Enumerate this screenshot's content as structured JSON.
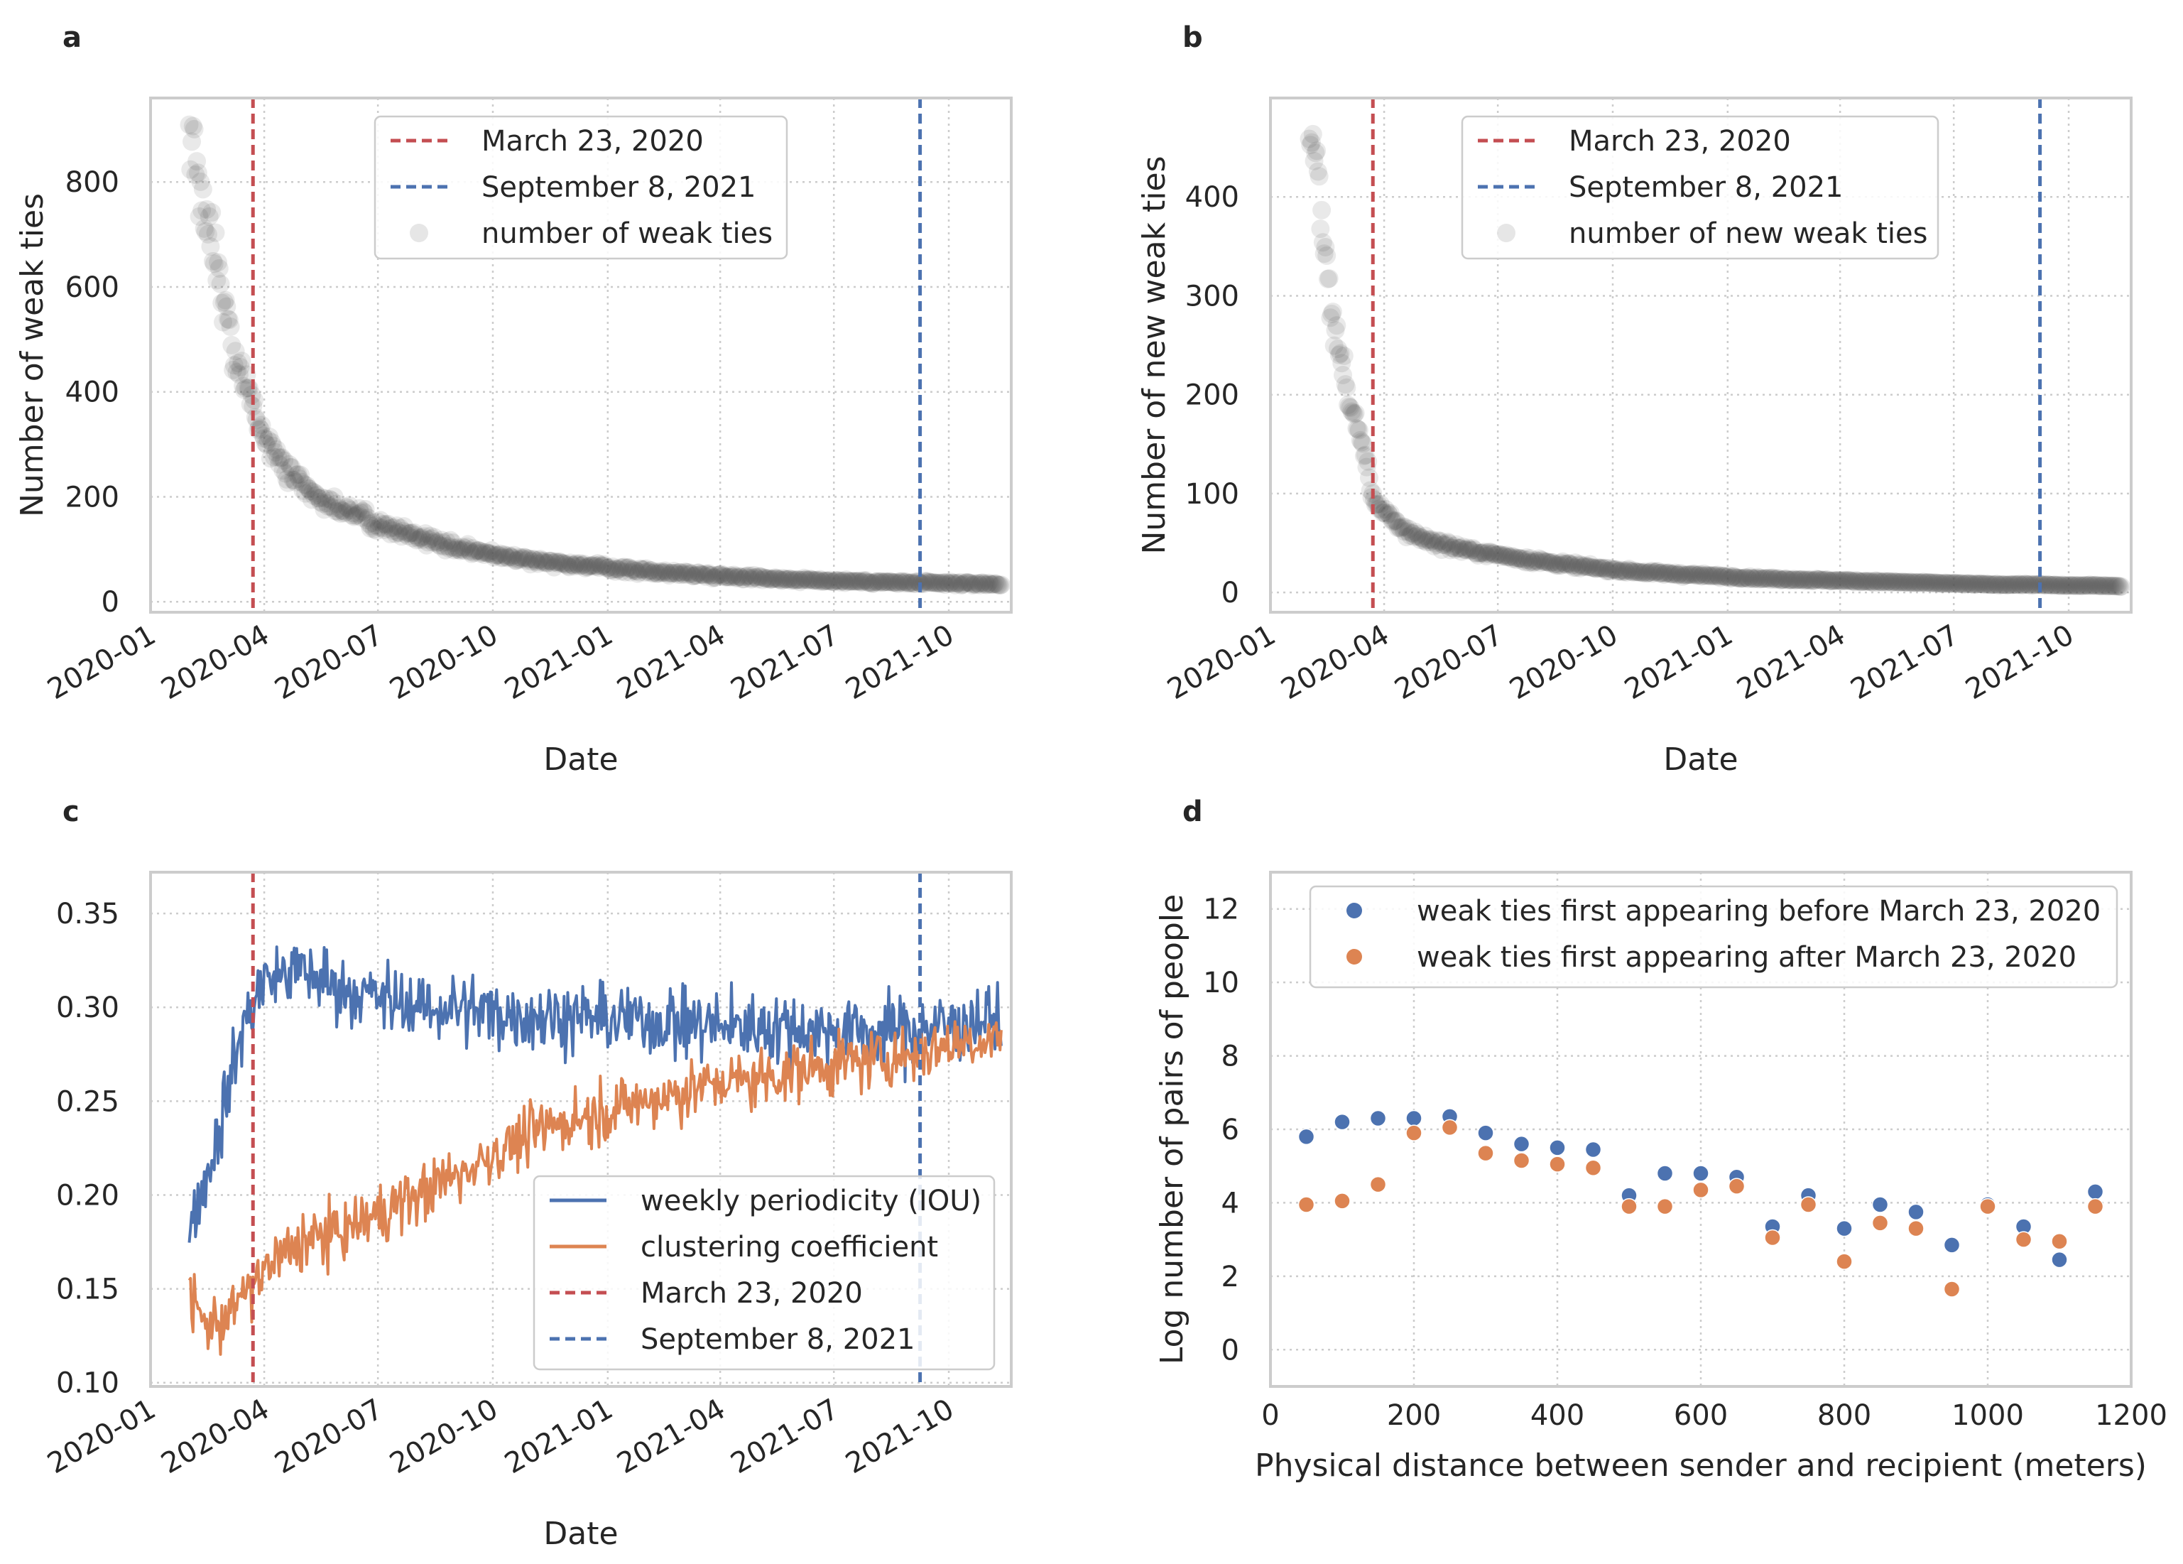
{
  "chart_data": [
    {
      "panel": "a",
      "type": "scatter",
      "xlabel": "Date",
      "ylabel": "Number of weak ties",
      "xticks": [
        "2020-01",
        "2020-04",
        "2020-07",
        "2020-10",
        "2021-01",
        "2021-04",
        "2021-07",
        "2021-10"
      ],
      "yticks": [
        "0",
        "200",
        "400",
        "600",
        "800"
      ],
      "xlim": [
        "2020-01-01",
        "2021-11-20"
      ],
      "ylim": [
        -20,
        960
      ],
      "grid": true,
      "legend_loc": "upper-center",
      "vlines": [
        {
          "date": "2020-03-23",
          "label": "March 23, 2020",
          "color": "#c44e52"
        },
        {
          "date": "2021-09-08",
          "label": "September 8, 2021",
          "color": "#4c72b0"
        }
      ],
      "series": [
        {
          "name": "number of weak ties",
          "color": "#555555",
          "points": [
            [
              "2020-02-01",
              850
            ],
            [
              "2020-02-04",
              890
            ],
            [
              "2020-02-08",
              800
            ],
            [
              "2020-02-12",
              760
            ],
            [
              "2020-02-18",
              700
            ],
            [
              "2020-02-24",
              640
            ],
            [
              "2020-03-01",
              560
            ],
            [
              "2020-03-08",
              480
            ],
            [
              "2020-03-15",
              430
            ],
            [
              "2020-03-22",
              380
            ],
            [
              "2020-04-01",
              310
            ],
            [
              "2020-04-15",
              260
            ],
            [
              "2020-05-01",
              220
            ],
            [
              "2020-05-20",
              190
            ],
            [
              "2020-06-10",
              170
            ],
            [
              "2020-07-01",
              150
            ],
            [
              "2020-08-01",
              125
            ],
            [
              "2020-09-01",
              105
            ],
            [
              "2020-10-01",
              90
            ],
            [
              "2020-11-01",
              80
            ],
            [
              "2020-12-01",
              72
            ],
            [
              "2021-01-01",
              65
            ],
            [
              "2021-02-01",
              58
            ],
            [
              "2021-03-01",
              54
            ],
            [
              "2021-04-01",
              50
            ],
            [
              "2021-05-01",
              46
            ],
            [
              "2021-06-01",
              42
            ],
            [
              "2021-07-01",
              40
            ],
            [
              "2021-08-01",
              38
            ],
            [
              "2021-09-01",
              36
            ],
            [
              "2021-10-01",
              35
            ],
            [
              "2021-11-01",
              34
            ],
            [
              "2021-11-12",
              33
            ]
          ]
        }
      ]
    },
    {
      "panel": "b",
      "type": "scatter",
      "xlabel": "Date",
      "ylabel": "Number of new weak ties",
      "xticks": [
        "2020-01",
        "2020-04",
        "2020-07",
        "2020-10",
        "2021-01",
        "2021-04",
        "2021-07",
        "2021-10"
      ],
      "yticks": [
        "0",
        "100",
        "200",
        "300",
        "400"
      ],
      "xlim": [
        "2020-01-01",
        "2021-11-20"
      ],
      "ylim": [
        -20,
        500
      ],
      "grid": true,
      "legend_loc": "upper-center",
      "vlines": [
        {
          "date": "2020-03-23",
          "label": "March 23, 2020",
          "color": "#c44e52"
        },
        {
          "date": "2021-09-08",
          "label": "September 8, 2021",
          "color": "#4c72b0"
        }
      ],
      "series": [
        {
          "name": "number of new weak ties",
          "color": "#555555",
          "points": [
            [
              "2020-02-01",
              460
            ],
            [
              "2020-02-04",
              470
            ],
            [
              "2020-02-08",
              400
            ],
            [
              "2020-02-12",
              360
            ],
            [
              "2020-02-18",
              300
            ],
            [
              "2020-02-24",
              250
            ],
            [
              "2020-03-01",
              210
            ],
            [
              "2020-03-08",
              175
            ],
            [
              "2020-03-15",
              150
            ],
            [
              "2020-03-22",
              100
            ],
            [
              "2020-04-01",
              80
            ],
            [
              "2020-04-15",
              65
            ],
            [
              "2020-05-01",
              55
            ],
            [
              "2020-05-20",
              48
            ],
            [
              "2020-06-10",
              42
            ],
            [
              "2020-07-01",
              38
            ],
            [
              "2020-08-01",
              32
            ],
            [
              "2020-09-01",
              27
            ],
            [
              "2020-10-01",
              23
            ],
            [
              "2020-11-01",
              20
            ],
            [
              "2020-12-01",
              18
            ],
            [
              "2021-01-01",
              16
            ],
            [
              "2021-02-01",
              14
            ],
            [
              "2021-03-01",
              13
            ],
            [
              "2021-04-01",
              12
            ],
            [
              "2021-05-01",
              11
            ],
            [
              "2021-06-01",
              10
            ],
            [
              "2021-07-01",
              9
            ],
            [
              "2021-08-01",
              8
            ],
            [
              "2021-09-01",
              8
            ],
            [
              "2021-10-01",
              7
            ],
            [
              "2021-11-01",
              7
            ],
            [
              "2021-11-12",
              6
            ]
          ]
        }
      ]
    },
    {
      "panel": "c",
      "type": "line",
      "xlabel": "Date",
      "ylabel": "",
      "xticks": [
        "2020-01",
        "2020-04",
        "2020-07",
        "2020-10",
        "2021-01",
        "2021-04",
        "2021-07",
        "2021-10"
      ],
      "yticks": [
        "0.10",
        "0.15",
        "0.20",
        "0.25",
        "0.30",
        "0.35"
      ],
      "xlim": [
        "2020-01-01",
        "2021-11-20"
      ],
      "ylim": [
        0.098,
        0.372
      ],
      "grid": true,
      "legend_loc": "lower-right",
      "vlines": [
        {
          "date": "2020-03-23",
          "label": "March 23, 2020",
          "color": "#c44e52"
        },
        {
          "date": "2021-09-08",
          "label": "September 8, 2021",
          "color": "#4c72b0"
        }
      ],
      "series": [
        {
          "name": "weekly periodicity (IOU)",
          "color": "#4c72b0",
          "points": [
            [
              "2020-02-01",
              0.185
            ],
            [
              "2020-02-15",
              0.21
            ],
            [
              "2020-03-01",
              0.25
            ],
            [
              "2020-03-15",
              0.29
            ],
            [
              "2020-04-01",
              0.315
            ],
            [
              "2020-05-01",
              0.32
            ],
            [
              "2020-06-01",
              0.31
            ],
            [
              "2020-07-01",
              0.305
            ],
            [
              "2020-08-01",
              0.3
            ],
            [
              "2020-09-01",
              0.3
            ],
            [
              "2020-10-01",
              0.297
            ],
            [
              "2020-11-01",
              0.296
            ],
            [
              "2020-12-01",
              0.295
            ],
            [
              "2021-01-01",
              0.294
            ],
            [
              "2021-02-01",
              0.293
            ],
            [
              "2021-03-01",
              0.292
            ],
            [
              "2021-04-01",
              0.29
            ],
            [
              "2021-05-01",
              0.29
            ],
            [
              "2021-06-01",
              0.289
            ],
            [
              "2021-07-01",
              0.288
            ],
            [
              "2021-08-01",
              0.287
            ],
            [
              "2021-09-01",
              0.288
            ],
            [
              "2021-10-01",
              0.29
            ],
            [
              "2021-11-12",
              0.295
            ]
          ]
        },
        {
          "name": "clustering coefficient",
          "color": "#dd8452",
          "points": [
            [
              "2020-02-01",
              0.145
            ],
            [
              "2020-02-15",
              0.13
            ],
            [
              "2020-03-01",
              0.135
            ],
            [
              "2020-03-15",
              0.145
            ],
            [
              "2020-04-01",
              0.16
            ],
            [
              "2020-05-01",
              0.175
            ],
            [
              "2020-06-01",
              0.18
            ],
            [
              "2020-07-01",
              0.19
            ],
            [
              "2020-08-01",
              0.2
            ],
            [
              "2020-09-01",
              0.21
            ],
            [
              "2020-10-01",
              0.222
            ],
            [
              "2020-11-01",
              0.232
            ],
            [
              "2020-12-01",
              0.24
            ],
            [
              "2021-01-01",
              0.245
            ],
            [
              "2021-02-01",
              0.25
            ],
            [
              "2021-03-01",
              0.255
            ],
            [
              "2021-04-01",
              0.26
            ],
            [
              "2021-05-01",
              0.262
            ],
            [
              "2021-06-01",
              0.266
            ],
            [
              "2021-07-01",
              0.27
            ],
            [
              "2021-08-01",
              0.272
            ],
            [
              "2021-09-01",
              0.275
            ],
            [
              "2021-10-01",
              0.28
            ],
            [
              "2021-11-12",
              0.285
            ]
          ]
        }
      ]
    },
    {
      "panel": "d",
      "type": "scatter",
      "xlabel": "Physical distance between sender and recipient (meters)",
      "ylabel": "Log number of pairs of people",
      "xticks": [
        "0",
        "200",
        "400",
        "600",
        "800",
        "1000",
        "1200"
      ],
      "yticks": [
        "0",
        "2",
        "4",
        "6",
        "8",
        "10",
        "12"
      ],
      "xlim": [
        0,
        1200
      ],
      "ylim": [
        -1,
        13
      ],
      "grid": true,
      "legend_loc": "upper-right",
      "series": [
        {
          "name": "weak ties first appearing before March 23, 2020",
          "color": "#4c72b0",
          "x": [
            50,
            100,
            150,
            200,
            250,
            300,
            350,
            400,
            450,
            500,
            550,
            600,
            650,
            700,
            750,
            800,
            850,
            900,
            950,
            1000,
            1050,
            1100,
            1150
          ],
          "y": [
            5.8,
            6.2,
            6.3,
            6.3,
            6.35,
            5.9,
            5.6,
            5.5,
            5.45,
            4.2,
            4.8,
            4.8,
            4.7,
            3.35,
            4.2,
            3.3,
            3.95,
            3.75,
            2.85,
            3.95,
            3.35,
            2.45,
            4.3
          ]
        },
        {
          "name": "weak ties first appearing after March 23, 2020",
          "color": "#dd8452",
          "x": [
            50,
            100,
            150,
            200,
            250,
            300,
            350,
            400,
            450,
            500,
            550,
            600,
            650,
            700,
            750,
            800,
            850,
            900,
            950,
            1000,
            1050,
            1100,
            1150
          ],
          "y": [
            3.95,
            4.05,
            4.5,
            5.9,
            6.05,
            5.35,
            5.15,
            5.05,
            4.95,
            3.9,
            3.9,
            4.35,
            4.45,
            3.05,
            3.95,
            2.4,
            3.45,
            3.3,
            1.65,
            3.9,
            3.0,
            2.95,
            3.9
          ]
        }
      ]
    }
  ]
}
